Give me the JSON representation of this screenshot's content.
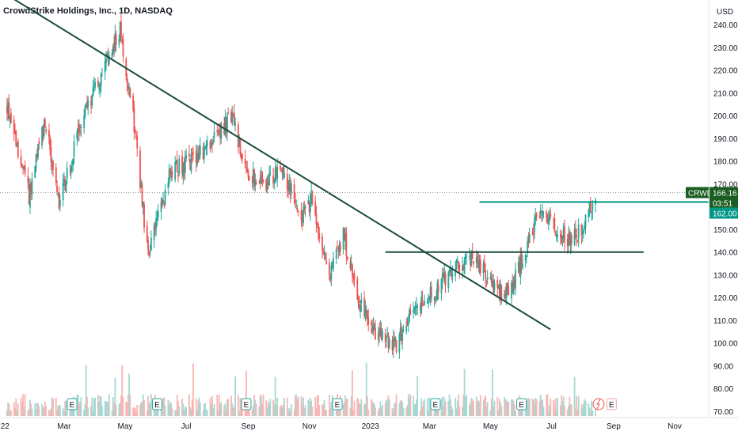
{
  "header": {
    "title": "CrowdStrike Holdings, Inc., 1D, NASDAQ"
  },
  "price_axis": {
    "currency": "USD"
  },
  "chart_data": {
    "type": "candlestick",
    "title": "CrowdStrike Holdings, Inc., 1D, NASDAQ",
    "ylim": [
      70,
      247
    ],
    "yticks": [
      240,
      230,
      220,
      210,
      200,
      190,
      180,
      170,
      150,
      140,
      130,
      120,
      110,
      100,
      90,
      80,
      70
    ],
    "ytick_labels": [
      "240.00",
      "230.00",
      "220.00",
      "210.00",
      "200.00",
      "190.00",
      "180.00",
      "170.00",
      "150.00",
      "140.00",
      "130.00",
      "120.00",
      "110.00",
      "100.00",
      "90.00",
      "80.00",
      "70.00"
    ],
    "xticks": [
      "2022-01",
      "2022-03",
      "2022-05",
      "2022-07",
      "2022-09",
      "2022-11",
      "2023-01",
      "2023-03",
      "2023-05",
      "2023-07",
      "2023-09",
      "2023-11"
    ],
    "xtick_labels": [
      "22",
      "Mar",
      "May",
      "Jul",
      "Sep",
      "Nov",
      "2023",
      "Mar",
      "May",
      "Jul",
      "Sep",
      "Nov"
    ],
    "price_path": [
      [
        "2022-01-03",
        205
      ],
      [
        "2022-01-25",
        165
      ],
      [
        "2022-02-10",
        198
      ],
      [
        "2022-02-24",
        160
      ],
      [
        "2022-03-20",
        200
      ],
      [
        "2022-04-10",
        220
      ],
      [
        "2022-04-26",
        238
      ],
      [
        "2022-05-09",
        200
      ],
      [
        "2022-05-24",
        138
      ],
      [
        "2022-06-15",
        175
      ],
      [
        "2022-07-05",
        180
      ],
      [
        "2022-07-20",
        185
      ],
      [
        "2022-08-16",
        200
      ],
      [
        "2022-08-30",
        175
      ],
      [
        "2022-09-20",
        170
      ],
      [
        "2022-10-05",
        176
      ],
      [
        "2022-10-25",
        155
      ],
      [
        "2022-11-03",
        163
      ],
      [
        "2022-11-20",
        128
      ],
      [
        "2022-12-05",
        148
      ],
      [
        "2022-12-20",
        118
      ],
      [
        "2023-01-05",
        105
      ],
      [
        "2023-01-25",
        98
      ],
      [
        "2023-02-10",
        112
      ],
      [
        "2023-02-28",
        120
      ],
      [
        "2023-03-20",
        130
      ],
      [
        "2023-04-10",
        138
      ],
      [
        "2023-04-26",
        130
      ],
      [
        "2023-05-10",
        122
      ],
      [
        "2023-05-22",
        125
      ],
      [
        "2023-06-05",
        140
      ],
      [
        "2023-06-20",
        160
      ],
      [
        "2023-07-05",
        150
      ],
      [
        "2023-07-20",
        145
      ],
      [
        "2023-08-03",
        152
      ],
      [
        "2023-08-14",
        166
      ]
    ],
    "trendlines": [
      {
        "from": [
          "2021-12-01",
          262
        ],
        "to": [
          "2023-06-30",
          106
        ]
      },
      {
        "from": [
          "2023-01-16",
          140
        ],
        "to": [
          "2023-10-01",
          140
        ]
      }
    ],
    "resistance_line": {
      "from": [
        "2023-04-20",
        162
      ],
      "to": [
        "2023-12-08",
        162
      ]
    },
    "current_price": {
      "symbol": "CRWD",
      "price": "166.16",
      "countdown": "03:51",
      "value": 166.16
    },
    "level_tag": {
      "label": "162.00",
      "value": 162
    },
    "earnings_markers": [
      "2022-03-09",
      "2022-06-02",
      "2022-08-30",
      "2022-11-29",
      "2023-03-07",
      "2023-06-01"
    ],
    "dividend_marker": "2023-08-17",
    "upcoming_earnings_marker": "2023-08-30",
    "earnings_label": "E",
    "colors": {
      "up": "#26a69a",
      "down": "#ef5350",
      "trend": "#1b4d3e",
      "resistance": "#009688",
      "tag": "#1b5e20",
      "grid": "#f0f3fa"
    }
  }
}
